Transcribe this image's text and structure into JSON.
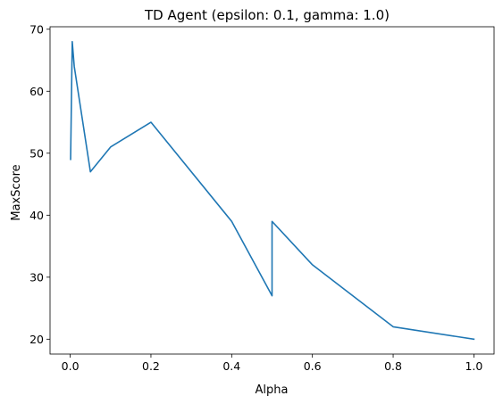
{
  "chart_data": {
    "type": "line",
    "title": "TD Agent (epsilon: 0.1, gamma: 1.0)",
    "xlabel": "Alpha",
    "ylabel": "MaxScore",
    "xlim": [
      -0.05,
      1.05
    ],
    "ylim": [
      17.6,
      70.4
    ],
    "xticks": [
      0.0,
      0.2,
      0.4,
      0.6,
      0.8,
      1.0
    ],
    "xtick_labels": [
      "0.0",
      "0.2",
      "0.4",
      "0.6",
      "0.8",
      "1.0"
    ],
    "yticks": [
      20,
      30,
      40,
      50,
      60,
      70
    ],
    "ytick_labels": [
      "20",
      "30",
      "40",
      "50",
      "60",
      "70"
    ],
    "grid": false,
    "series": [
      {
        "color": "#1f77b4",
        "x": [
          0.001,
          0.005,
          0.01,
          0.05,
          0.1,
          0.2,
          0.4,
          0.5,
          0.5,
          0.6,
          0.8,
          1.0
        ],
        "y": [
          49,
          68,
          64,
          47,
          51,
          55,
          39,
          27,
          39,
          32,
          22,
          20
        ]
      }
    ]
  }
}
